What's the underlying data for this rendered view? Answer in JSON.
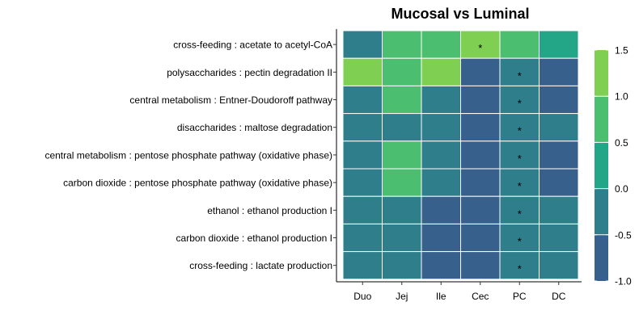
{
  "chart_data": {
    "type": "heatmap",
    "title": "Mucosal vs Luminal",
    "xlabel": "",
    "ylabel": "",
    "x": [
      "Duo",
      "Jej",
      "Ile",
      "Cec",
      "PC",
      "DC"
    ],
    "y": [
      "cross-feeding : acetate to acetyl-CoA",
      "polysaccharides : pectin degradation II",
      "central metabolism : Entner-Doudoroff pathway",
      "disaccharides : maltose degradation",
      "central metabolism : pentose phosphate pathway (oxidative phase)",
      "carbon dioxide : pentose phosphate pathway (oxidative phase)",
      "ethanol : ethanol production I",
      "carbon dioxide : ethanol production I",
      "cross-feeding : lactate production"
    ],
    "values": [
      [
        -0.2,
        0.5,
        0.5,
        1.0,
        0.5,
        0.0
      ],
      [
        1.3,
        0.5,
        1.3,
        -0.8,
        -0.5,
        -0.8
      ],
      [
        -0.2,
        0.5,
        -0.2,
        -0.8,
        -0.5,
        -0.8
      ],
      [
        -0.2,
        -0.2,
        -0.2,
        -0.8,
        -0.5,
        -0.2
      ],
      [
        -0.2,
        0.5,
        -0.2,
        -0.8,
        -0.5,
        -0.8
      ],
      [
        -0.2,
        0.5,
        -0.2,
        -0.8,
        -0.5,
        -0.8
      ],
      [
        -0.2,
        -0.2,
        -0.8,
        -0.8,
        -0.5,
        -0.2
      ],
      [
        -0.2,
        -0.2,
        -0.8,
        -0.8,
        -0.5,
        -0.2
      ],
      [
        -0.2,
        -0.2,
        -0.8,
        -0.8,
        -0.5,
        -0.2
      ]
    ],
    "annotations": [
      [
        "",
        "",
        "",
        "*",
        "",
        ""
      ],
      [
        "",
        "",
        "",
        "",
        "*",
        ""
      ],
      [
        "",
        "",
        "",
        "",
        "*",
        ""
      ],
      [
        "",
        "",
        "",
        "",
        "*",
        ""
      ],
      [
        "",
        "",
        "",
        "",
        "*",
        ""
      ],
      [
        "",
        "",
        "",
        "",
        "*",
        ""
      ],
      [
        "",
        "",
        "",
        "",
        "*",
        ""
      ],
      [
        "",
        "",
        "",
        "",
        "*",
        ""
      ],
      [
        "",
        "",
        "",
        "",
        "*",
        ""
      ]
    ],
    "legend": {
      "position": "right",
      "breaks": [
        1.5,
        1.0,
        0.5,
        0.0,
        -0.5,
        -1.0
      ],
      "tick_labels": [
        "1.5",
        "1.0",
        "0.5",
        "0.0",
        "-0.5",
        "-1.0"
      ],
      "colors": [
        "#38608C",
        "#2E7E8C",
        "#23A587",
        "#4CBE70",
        "#7ECF52"
      ],
      "range": [
        -1.0,
        1.5
      ]
    },
    "grid": false
  }
}
